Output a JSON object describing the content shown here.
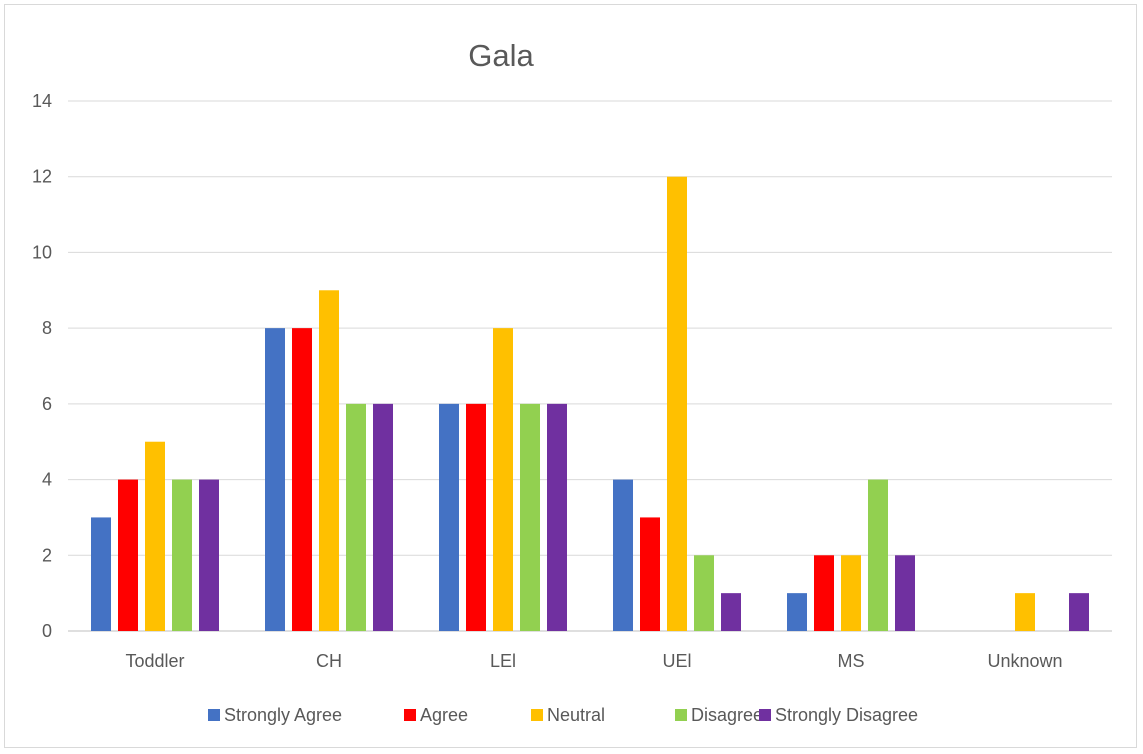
{
  "chart_data": {
    "type": "bar",
    "title": "Gala",
    "xlabel": "",
    "ylabel": "",
    "categories": [
      "Toddler",
      "CH",
      "LEl",
      "UEl",
      "MS",
      "Unknown"
    ],
    "series": [
      {
        "name": "Strongly Agree",
        "color": "#4472c4",
        "values": [
          3,
          8,
          6,
          4,
          1,
          0
        ]
      },
      {
        "name": "Agree",
        "color": "#ff0000",
        "values": [
          4,
          8,
          6,
          3,
          2,
          0
        ]
      },
      {
        "name": "Neutral",
        "color": "#ffc000",
        "values": [
          5,
          9,
          8,
          12,
          2,
          1
        ]
      },
      {
        "name": "Disagree",
        "color": "#92d050",
        "values": [
          4,
          6,
          6,
          2,
          4,
          0
        ]
      },
      {
        "name": "Strongly Disagree",
        "color": "#7030a0",
        "values": [
          4,
          6,
          6,
          1,
          2,
          1
        ]
      }
    ],
    "ylim": [
      0,
      14
    ],
    "yticks": [
      0,
      2,
      4,
      6,
      8,
      10,
      12,
      14
    ],
    "grid": true,
    "legend": "bottom"
  }
}
